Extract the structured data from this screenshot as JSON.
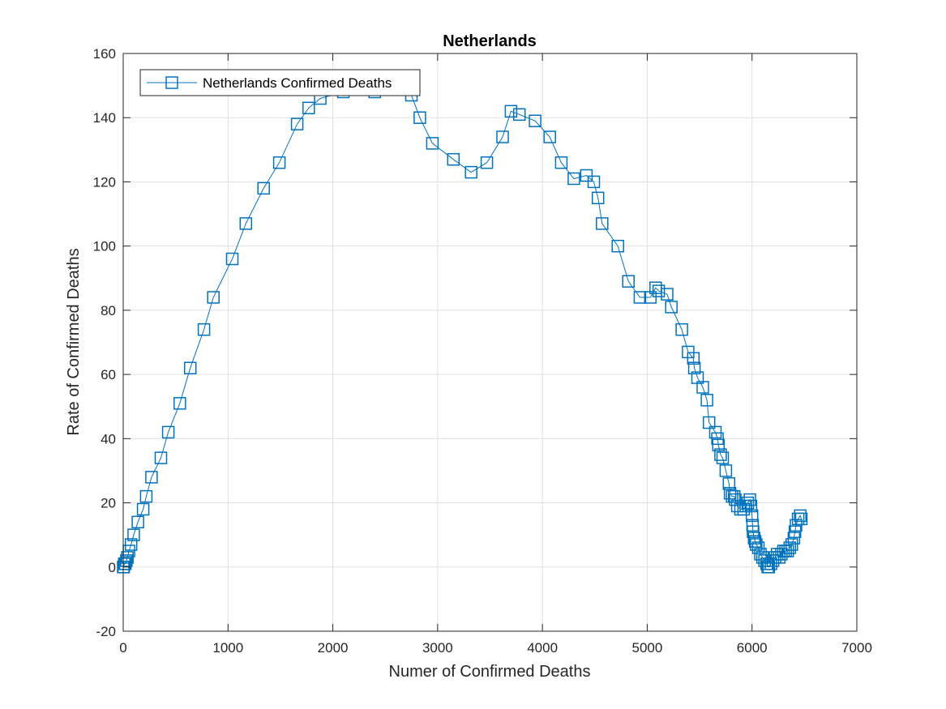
{
  "chart_data": {
    "type": "line",
    "title": "Netherlands",
    "xlabel": "Numer of Confirmed Deaths",
    "ylabel": "Rate of Confirmed Deaths",
    "xlim": [
      0,
      7000
    ],
    "ylim": [
      -20,
      160
    ],
    "xticks": [
      0,
      1000,
      2000,
      3000,
      4000,
      5000,
      6000,
      7000
    ],
    "yticks": [
      -20,
      0,
      20,
      40,
      60,
      80,
      100,
      120,
      140,
      160
    ],
    "grid": true,
    "legend_position": "top-left",
    "series": [
      {
        "name": "Netherlands Confirmed Deaths",
        "color": "#0072BD",
        "marker": "square",
        "points": [
          [
            0,
            0
          ],
          [
            5,
            0
          ],
          [
            10,
            1
          ],
          [
            20,
            1
          ],
          [
            30,
            2
          ],
          [
            40,
            3
          ],
          [
            55,
            5
          ],
          [
            75,
            7
          ],
          [
            100,
            10
          ],
          [
            140,
            14
          ],
          [
            190,
            18
          ],
          [
            220,
            22
          ],
          [
            270,
            28
          ],
          [
            360,
            34
          ],
          [
            430,
            42
          ],
          [
            540,
            51
          ],
          [
            640,
            62
          ],
          [
            770,
            74
          ],
          [
            860,
            84
          ],
          [
            1040,
            96
          ],
          [
            1170,
            107
          ],
          [
            1340,
            118
          ],
          [
            1490,
            126
          ],
          [
            1660,
            138
          ],
          [
            1770,
            143
          ],
          [
            1880,
            146
          ],
          [
            2100,
            148
          ],
          [
            2400,
            148
          ],
          [
            2750,
            147
          ],
          [
            2830,
            140
          ],
          [
            2950,
            132
          ],
          [
            3150,
            127
          ],
          [
            3320,
            123
          ],
          [
            3470,
            126
          ],
          [
            3620,
            134
          ],
          [
            3700,
            142
          ],
          [
            3780,
            141
          ],
          [
            3930,
            139
          ],
          [
            4070,
            134
          ],
          [
            4180,
            126
          ],
          [
            4300,
            121
          ],
          [
            4420,
            122
          ],
          [
            4490,
            120
          ],
          [
            4530,
            115
          ],
          [
            4570,
            107
          ],
          [
            4720,
            100
          ],
          [
            4820,
            89
          ],
          [
            4930,
            84
          ],
          [
            5030,
            84
          ],
          [
            5080,
            87
          ],
          [
            5110,
            86
          ],
          [
            5190,
            85
          ],
          [
            5230,
            81
          ],
          [
            5330,
            74
          ],
          [
            5390,
            67
          ],
          [
            5440,
            65
          ],
          [
            5450,
            62
          ],
          [
            5480,
            59
          ],
          [
            5530,
            56
          ],
          [
            5570,
            52
          ],
          [
            5590,
            45
          ],
          [
            5650,
            42
          ],
          [
            5670,
            40
          ],
          [
            5680,
            38
          ],
          [
            5700,
            35
          ],
          [
            5720,
            34
          ],
          [
            5750,
            30
          ],
          [
            5780,
            26
          ],
          [
            5790,
            23
          ],
          [
            5810,
            22
          ],
          [
            5830,
            22
          ],
          [
            5840,
            21
          ],
          [
            5860,
            19
          ],
          [
            5890,
            18
          ],
          [
            5920,
            18
          ],
          [
            5940,
            19
          ],
          [
            5960,
            20
          ],
          [
            5980,
            21
          ],
          [
            5990,
            19
          ],
          [
            6000,
            16
          ],
          [
            6005,
            13
          ],
          [
            6010,
            11
          ],
          [
            6020,
            9
          ],
          [
            6030,
            8
          ],
          [
            6040,
            7
          ],
          [
            6060,
            6
          ],
          [
            6080,
            4
          ],
          [
            6100,
            3
          ],
          [
            6120,
            2
          ],
          [
            6140,
            1
          ],
          [
            6150,
            0
          ],
          [
            6160,
            0
          ],
          [
            6180,
            1
          ],
          [
            6200,
            2
          ],
          [
            6220,
            3
          ],
          [
            6240,
            4
          ],
          [
            6260,
            3
          ],
          [
            6280,
            4
          ],
          [
            6300,
            5
          ],
          [
            6320,
            5
          ],
          [
            6340,
            5
          ],
          [
            6360,
            6
          ],
          [
            6380,
            7
          ],
          [
            6400,
            9
          ],
          [
            6410,
            11
          ],
          [
            6420,
            13
          ],
          [
            6440,
            15
          ],
          [
            6460,
            16
          ],
          [
            6470,
            15
          ]
        ]
      }
    ]
  }
}
